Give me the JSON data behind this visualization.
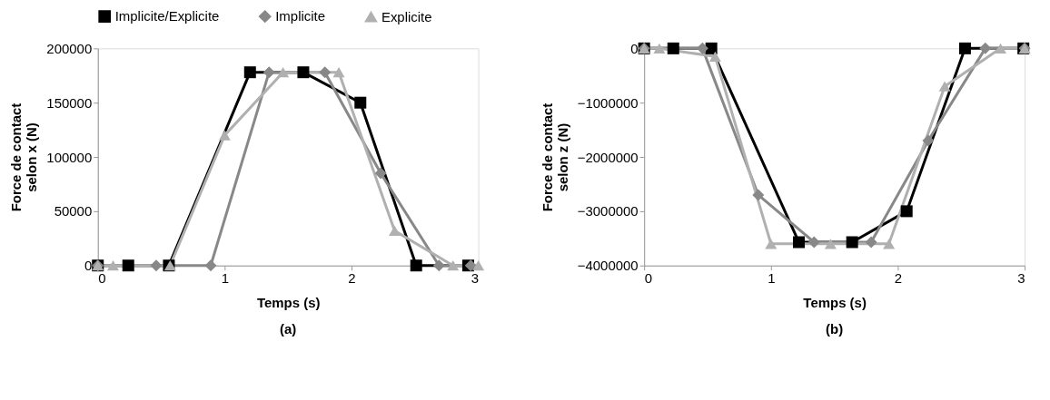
{
  "chart_data": [
    {
      "type": "line",
      "title": "(a)",
      "xlabel": "Temps (s)",
      "ylabel": "Force de contact\nselon x (N)",
      "xlim": [
        0,
        3
      ],
      "xticks": [
        0,
        1,
        2,
        3
      ],
      "ylim": [
        0,
        200000
      ],
      "yticks": [
        0,
        50000,
        100000,
        150000,
        200000
      ],
      "grid": false,
      "legend": "top",
      "series": [
        {
          "name": "Implicite/Explicite",
          "color": "#000000",
          "marker": "square",
          "x": [
            0,
            0.24,
            0.56,
            1.2,
            1.62,
            2.07,
            2.51,
            2.92
          ],
          "values": [
            0,
            0,
            0,
            178000,
            178000,
            150000,
            0,
            0
          ]
        },
        {
          "name": "Implicite",
          "color": "#888888",
          "marker": "diamond",
          "x": [
            0,
            0.46,
            0.89,
            1.35,
            1.79,
            2.23,
            2.69,
            2.94
          ],
          "values": [
            0,
            0,
            0,
            178000,
            178000,
            85000,
            0,
            0
          ]
        },
        {
          "name": "Explicite",
          "color": "#b0b0b0",
          "marker": "triangle",
          "x": [
            0,
            0.12,
            0.57,
            1.0,
            1.46,
            1.9,
            2.34,
            2.8,
            3.0
          ],
          "values": [
            0,
            0,
            0,
            120000,
            178000,
            178000,
            32000,
            0,
            0
          ]
        }
      ]
    },
    {
      "type": "line",
      "title": "(b)",
      "xlabel": "Temps (s)",
      "ylabel": "Force de contact\nselon z (N)",
      "xlim": [
        0,
        3
      ],
      "xticks": [
        0,
        1,
        2,
        3
      ],
      "ylim": [
        -4000000,
        0
      ],
      "yticks": [
        -4000000,
        -3000000,
        -2000000,
        -1000000,
        0
      ],
      "grid": false,
      "legend": "top",
      "series": [
        {
          "name": "Implicite/Explicite",
          "color": "#000000",
          "marker": "square",
          "x": [
            0,
            0.23,
            0.53,
            1.22,
            1.64,
            2.07,
            2.53,
            2.99
          ],
          "values": [
            0,
            0,
            0,
            -3570000,
            -3570000,
            -3000000,
            0,
            0
          ]
        },
        {
          "name": "Implicite",
          "color": "#888888",
          "marker": "diamond",
          "x": [
            0,
            0.46,
            0.9,
            1.34,
            1.79,
            2.24,
            2.69,
            3.0
          ],
          "values": [
            0,
            0,
            -2700000,
            -3570000,
            -3570000,
            -1700000,
            0,
            0
          ]
        },
        {
          "name": "Explicite",
          "color": "#b0b0b0",
          "marker": "triangle",
          "x": [
            0,
            0.12,
            0.56,
            1.0,
            1.47,
            1.93,
            2.37,
            2.81,
            3.0
          ],
          "values": [
            0,
            0,
            -150000,
            -3600000,
            -3600000,
            -3600000,
            -700000,
            0,
            0
          ]
        }
      ]
    }
  ]
}
